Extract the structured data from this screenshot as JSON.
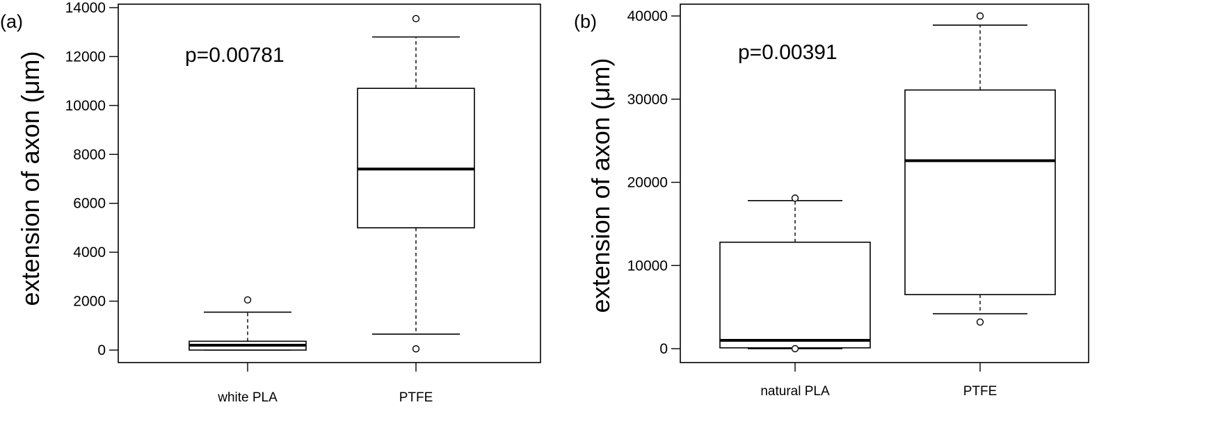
{
  "chart_data": [
    {
      "type": "boxplot",
      "panel_label": "(a)",
      "annotation": "p=0.00781",
      "ylabel": "extension of axon (μm)",
      "xlabel": "",
      "ylim": [
        0,
        14000
      ],
      "yticks": [
        0,
        2000,
        4000,
        6000,
        8000,
        10000,
        12000,
        14000
      ],
      "categories": [
        "white PLA",
        "PTFE"
      ],
      "boxes": [
        {
          "category": "white PLA",
          "whisker_low": 0,
          "q1": 0,
          "median": 200,
          "q3": 360,
          "whisker_high": 1550,
          "outliers": [
            2050
          ]
        },
        {
          "category": "PTFE",
          "whisker_low": 650,
          "q1": 5000,
          "median": 7400,
          "q3": 10700,
          "whisker_high": 12800,
          "outliers": [
            13550,
            50
          ]
        }
      ]
    },
    {
      "type": "boxplot",
      "panel_label": "(b)",
      "annotation": "p=0.00391",
      "ylabel": "extension of axon (μm)",
      "xlabel": "",
      "ylim": [
        0,
        40000
      ],
      "yticks": [
        0,
        10000,
        20000,
        30000,
        40000
      ],
      "categories": [
        "natural PLA",
        "PTFE"
      ],
      "boxes": [
        {
          "category": "natural PLA",
          "whisker_low": 0,
          "q1": 100,
          "median": 1000,
          "q3": 12800,
          "whisker_high": 17800,
          "outliers": [
            18100,
            0
          ]
        },
        {
          "category": "PTFE",
          "whisker_low": 4200,
          "q1": 6500,
          "median": 22600,
          "q3": 31100,
          "whisker_high": 38900,
          "outliers": [
            40000,
            3200
          ]
        }
      ]
    }
  ]
}
